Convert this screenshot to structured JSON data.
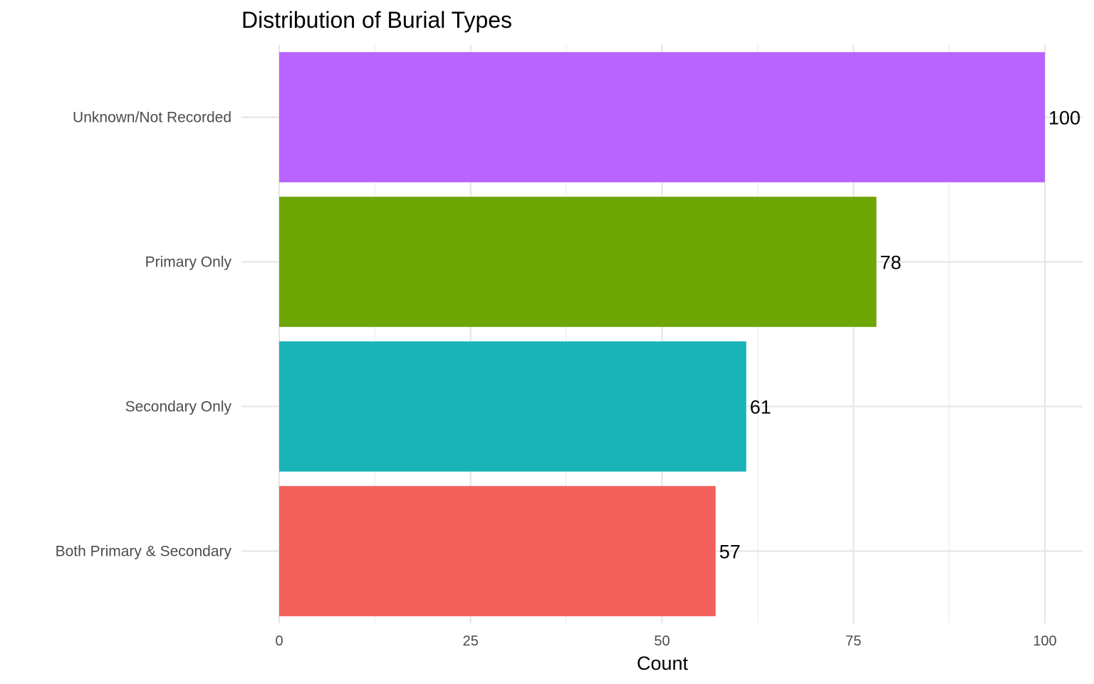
{
  "chart_data": {
    "type": "bar",
    "orientation": "horizontal",
    "title": "Distribution of Burial Types",
    "xlabel": "Count",
    "ylabel": "",
    "categories": [
      "Unknown/Not Recorded",
      "Primary Only",
      "Secondary Only",
      "Both Primary & Secondary"
    ],
    "values": [
      100,
      78,
      61,
      57
    ],
    "colors": [
      "#B964FF",
      "#6DA503",
      "#1AB4B8",
      "#F4605B"
    ],
    "xlim": [
      0,
      100
    ],
    "x_ticks": [
      0,
      25,
      50,
      75,
      100
    ],
    "grid": true,
    "legend": "none"
  }
}
